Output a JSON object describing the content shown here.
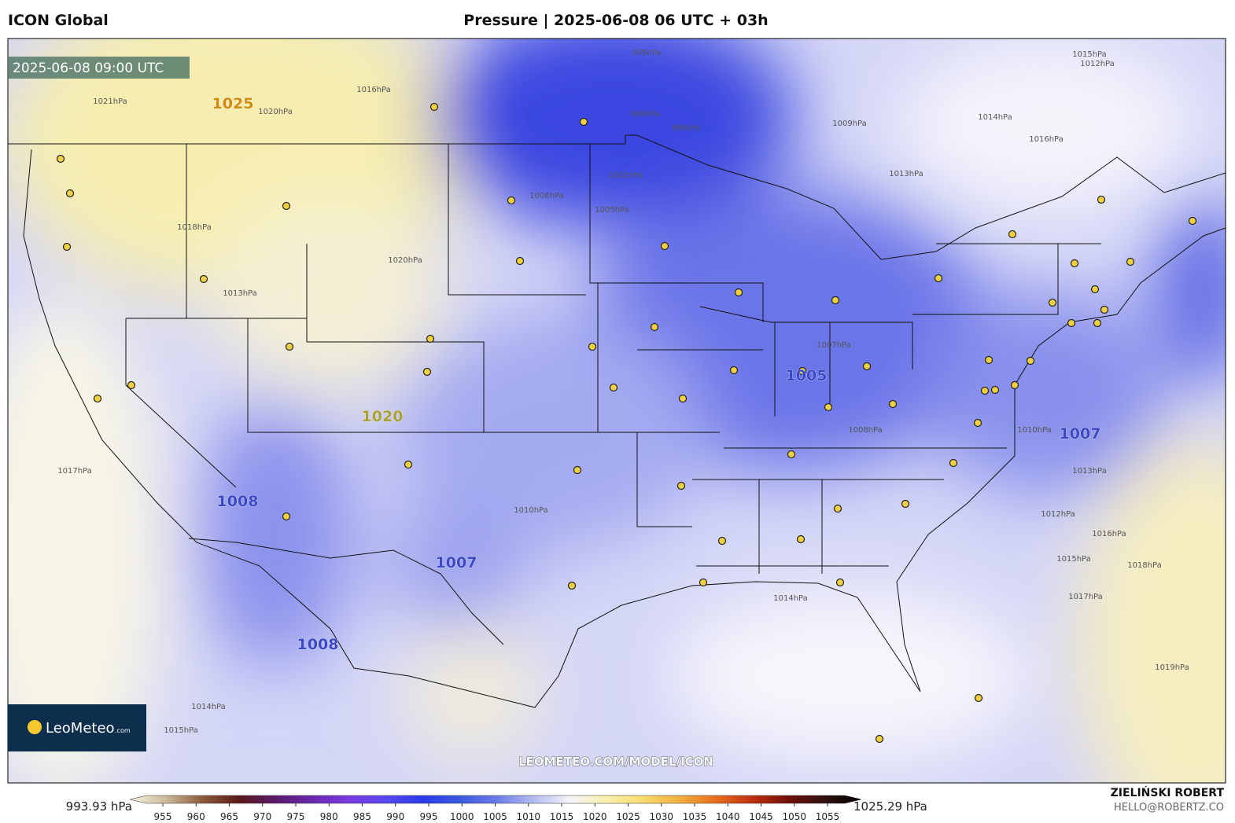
{
  "header": {
    "model": "ICON Global",
    "title": "Pressure | 2025-06-08 06 UTC + 03h"
  },
  "map": {
    "valid_time": "2025-06-08 09:00 UTC",
    "centers": [
      "1025",
      "1020",
      "1008",
      "1007",
      "1005",
      "1008",
      "1007"
    ],
    "isobar_labels": [
      "995hPa",
      "998hPa",
      "999hPa",
      "1002hPa",
      "1005hPa",
      "1006hPa",
      "1009hPa",
      "1013hPa",
      "1012hPa",
      "1014hPa",
      "1016hPa",
      "1015hPa",
      "1007hPa",
      "1008hPa",
      "1010hPa",
      "1013hPa",
      "1012hPa",
      "1015hPa",
      "1016hPa",
      "1017hPa",
      "1018hPa",
      "1019hPa",
      "1014hPa",
      "1016hPa",
      "1017hPa",
      "1014hPa",
      "1015hPa",
      "1013hPa",
      "1018hPa",
      "1020hPa",
      "1010hPa",
      "1021hPa",
      "1020hPa"
    ],
    "logo": {
      "name": "LeoMeteo",
      "suffix": ".com"
    },
    "watermark": "LEOMETEO.COM/MODEL/ICON"
  },
  "colorbar": {
    "min_label": "993.93 hPa",
    "max_label": "1025.29 hPa",
    "ticks": [
      955,
      960,
      965,
      970,
      975,
      980,
      985,
      990,
      995,
      1000,
      1005,
      1010,
      1015,
      1020,
      1025,
      1030,
      1035,
      1040,
      1045,
      1050,
      1055
    ]
  },
  "footer": {
    "author": "ZIELIŃSKI ROBERT",
    "email": "HELLO@ROBERTZ.CO"
  }
}
